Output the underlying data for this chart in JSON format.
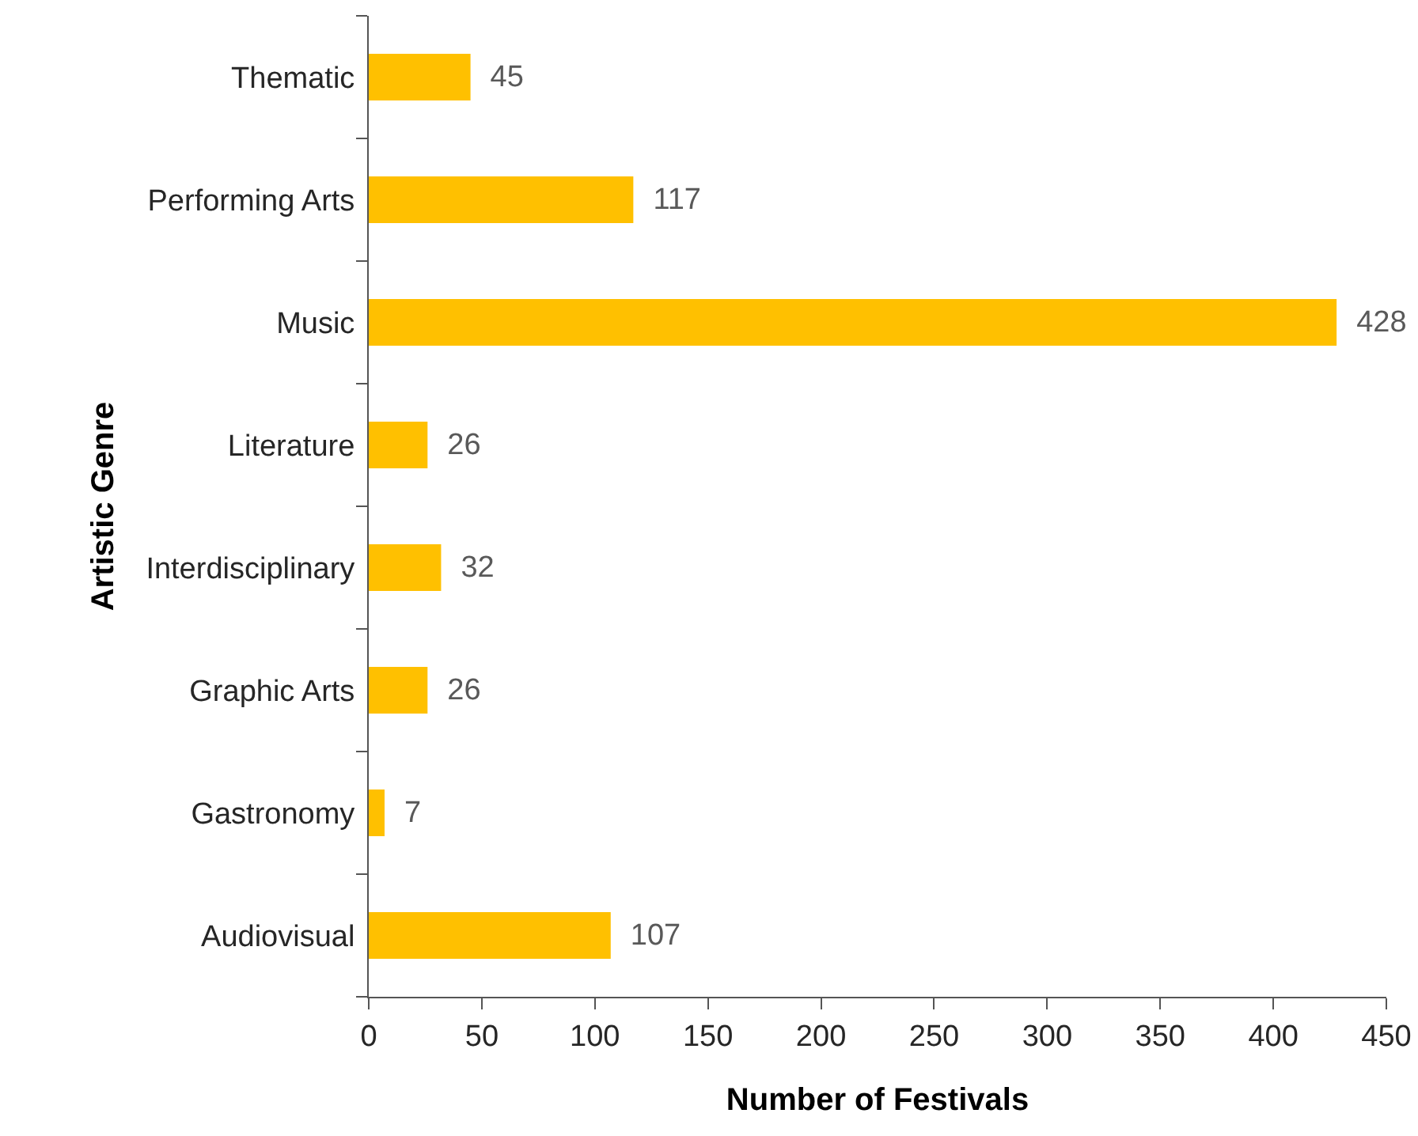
{
  "chart_data": {
    "type": "bar",
    "orientation": "horizontal",
    "xlabel": "Number of Festivals",
    "ylabel": "Artistic Genre",
    "categories": [
      "Thematic",
      "Performing Arts",
      "Music",
      "Literature",
      "Interdisciplinary",
      "Graphic Arts",
      "Gastronomy",
      "Audiovisual"
    ],
    "values": [
      45,
      117,
      428,
      26,
      32,
      26,
      7,
      107
    ],
    "color": "#ffc000",
    "data_labels": true,
    "xlim": [
      0,
      450
    ],
    "xticks": [
      0,
      50,
      100,
      150,
      200,
      250,
      300,
      350,
      400,
      450
    ]
  }
}
